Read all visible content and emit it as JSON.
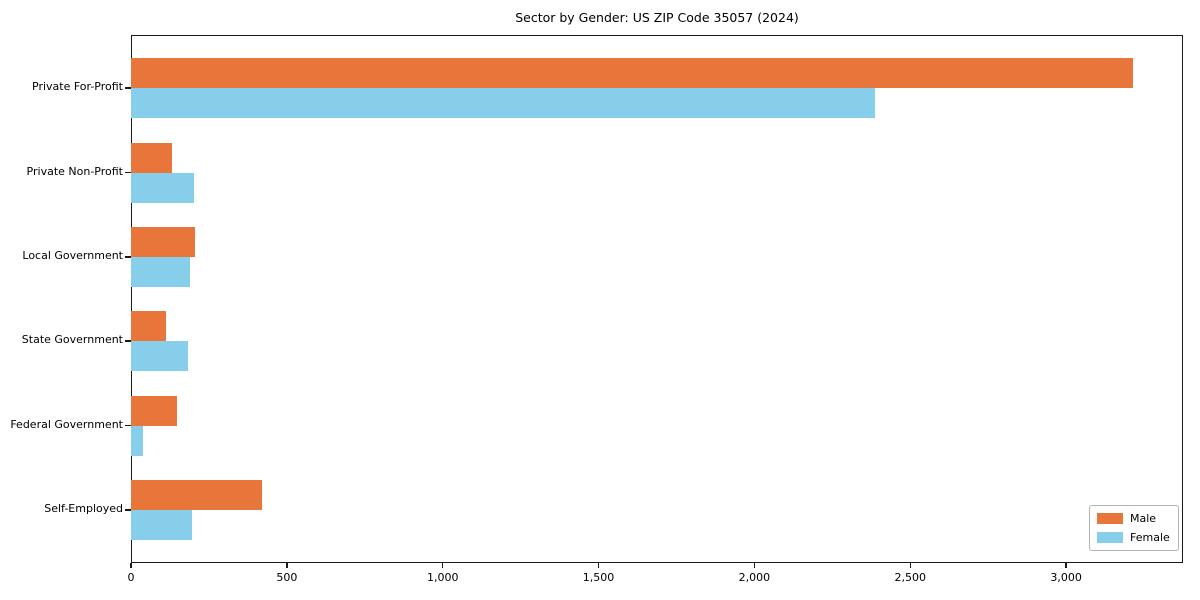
{
  "chart_data": {
    "type": "bar",
    "orientation": "horizontal",
    "title": "Sector by Gender: US ZIP Code 35057 (2024)",
    "categories": [
      "Private For-Profit",
      "Private Non-Profit",
      "Local Government",
      "State Government",
      "Federal Government",
      "Self-Employed"
    ],
    "series": [
      {
        "name": "Male",
        "color": "#E8763B",
        "values": [
          3214,
          133,
          204,
          112,
          146,
          419
        ]
      },
      {
        "name": "Female",
        "color": "#87CEEB",
        "values": [
          2388,
          201,
          190,
          184,
          37,
          197
        ]
      }
    ],
    "xlabel": "",
    "ylabel": "",
    "xlim": [
      0,
      3375
    ],
    "xticks": [
      0,
      500,
      1000,
      1500,
      2000,
      2500,
      3000
    ],
    "xtick_labels": [
      "0",
      "500",
      "1,000",
      "1,500",
      "2,000",
      "2,500",
      "3,000"
    ],
    "grid": false,
    "legend_position": "lower right"
  },
  "legend": {
    "items": [
      {
        "label": "Male",
        "color": "#E8763B"
      },
      {
        "label": "Female",
        "color": "#87CEEB"
      }
    ]
  }
}
